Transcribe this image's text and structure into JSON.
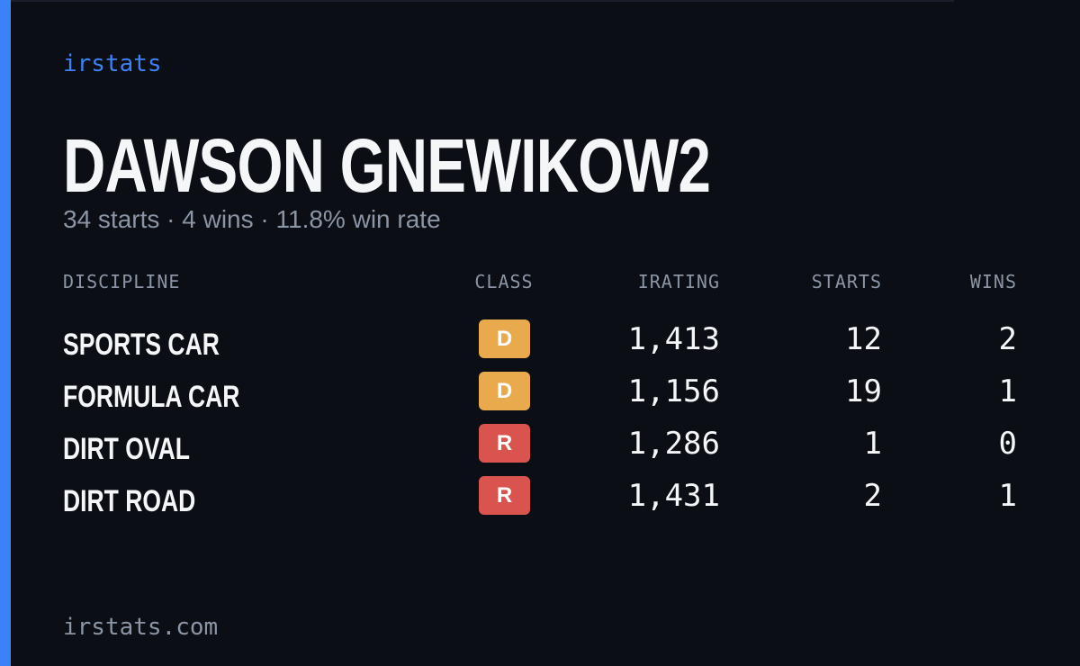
{
  "brand": "irstats",
  "player": {
    "name": "DAWSON GNEWIKOW2",
    "summary": "34 starts · 4 wins · 11.8% win rate"
  },
  "table": {
    "headers": [
      "DISCIPLINE",
      "CLASS",
      "IRATING",
      "STARTS",
      "WINS"
    ],
    "rows": [
      {
        "discipline": "SPORTS CAR",
        "class": "D",
        "class_color": "#e8aa4c",
        "irating": "1,413",
        "starts": "12",
        "wins": "2"
      },
      {
        "discipline": "FORMULA CAR",
        "class": "D",
        "class_color": "#e8aa4c",
        "irating": "1,156",
        "starts": "19",
        "wins": "1"
      },
      {
        "discipline": "DIRT OVAL",
        "class": "R",
        "class_color": "#d9534f",
        "irating": "1,286",
        "starts": "1",
        "wins": "0"
      },
      {
        "discipline": "DIRT ROAD",
        "class": "R",
        "class_color": "#d9534f",
        "irating": "1,431",
        "starts": "2",
        "wins": "1"
      }
    ]
  },
  "footer": "irstats.com"
}
